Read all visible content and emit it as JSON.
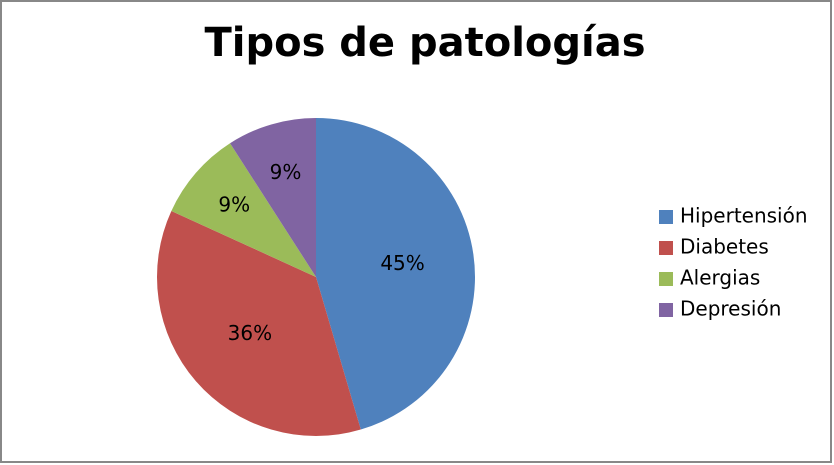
{
  "chart_data": {
    "type": "pie",
    "title": "Tipos de patologías",
    "categories": [
      "Hipertensión",
      "Diabetes",
      "Alergias",
      "Depresión"
    ],
    "values": [
      45,
      36,
      9,
      9
    ],
    "value_labels": [
      "45%",
      "36%",
      "9%",
      "9%"
    ],
    "colors": [
      "#4f81bd",
      "#c0504d",
      "#9bbb59",
      "#8064a2"
    ],
    "legend": "right"
  }
}
